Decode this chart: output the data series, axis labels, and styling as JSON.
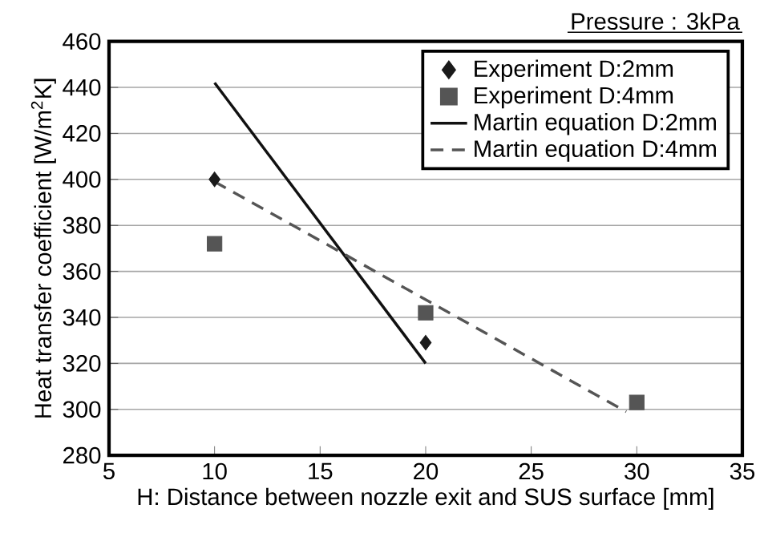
{
  "chart_data": {
    "type": "scatter",
    "xlabel": "H: Distance between nozzle exit and SUS surface [mm]",
    "ylabel": "Heat transfer coefficient [W/m$^{2}$K]",
    "annotations": [
      "Pressure : 3kPa"
    ],
    "xlim": [
      5,
      35
    ],
    "xticks": [
      5,
      10,
      15,
      20,
      25,
      30,
      35
    ],
    "ylim": [
      280,
      460
    ],
    "yticks": [
      280,
      300,
      320,
      340,
      360,
      380,
      400,
      420,
      440,
      460
    ],
    "grid": "y",
    "legend": "top right",
    "series": [
      {
        "name": "Experiment D:2mm",
        "marker": "diamond",
        "color": "#1a1a1a",
        "x": [
          10,
          20
        ],
        "values": [
          400,
          329
        ]
      },
      {
        "name": "Experiment D:4mm",
        "marker": "square",
        "color": "#555555",
        "x": [
          10,
          20,
          30
        ],
        "values": [
          372,
          342,
          303
        ]
      },
      {
        "name": "Martin equation D:2mm",
        "type": "line",
        "marker": "none",
        "line_style": "solid",
        "color": "#111111",
        "x": [
          10,
          20
        ],
        "values": [
          442,
          320
        ]
      },
      {
        "name": "Martin equation D:4mm",
        "type": "line",
        "marker": "none",
        "line_style": "dashed",
        "color": "#555555",
        "x": [
          10,
          29.5
        ],
        "values": [
          399,
          299
        ]
      }
    ]
  }
}
